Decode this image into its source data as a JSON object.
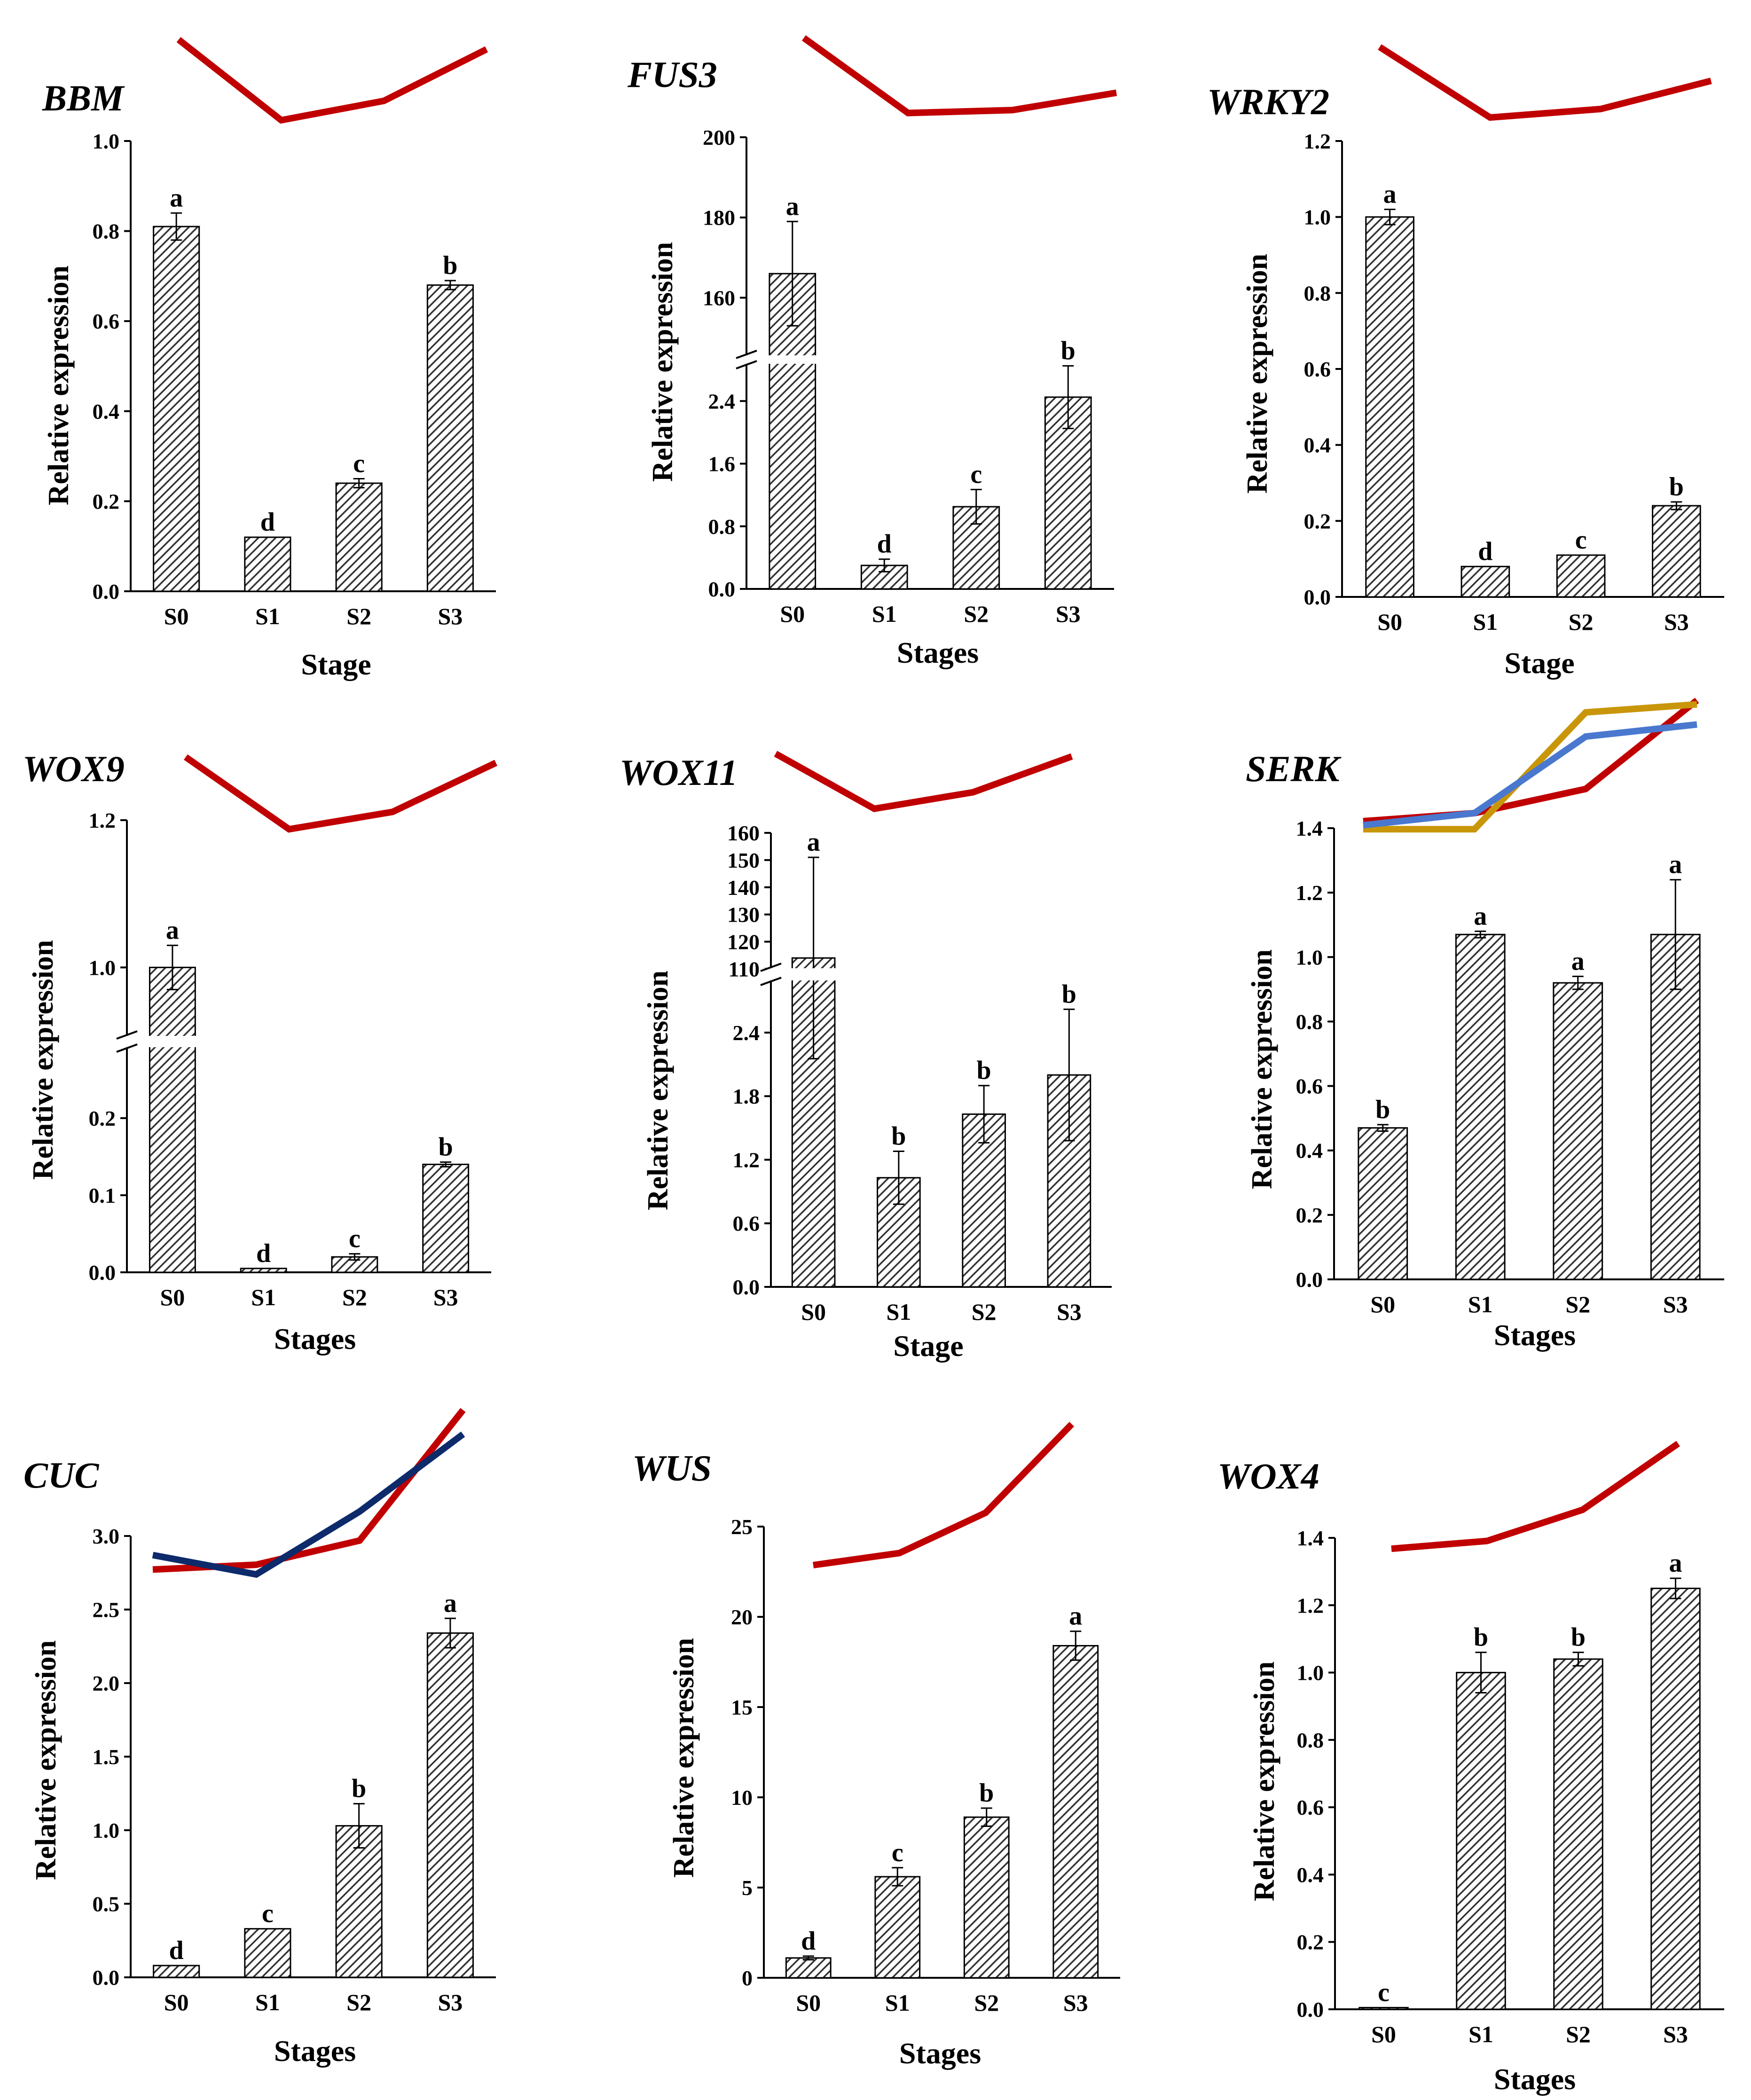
{
  "figure": {
    "description_free": true
  },
  "colors": {
    "trend_red": "#c00000",
    "trend_navy": "#0d2a6b",
    "trend_blue": "#4a78cf",
    "trend_gold": "#c9960a",
    "bar_fill": "#6b6b6b",
    "axis": "#000000"
  },
  "chart_data": [
    {
      "type": "bar",
      "title": "BBM",
      "ylabel": "Relative expression",
      "xlabel": "Stage",
      "categories": [
        "S0",
        "S1",
        "S2",
        "S3"
      ],
      "values": [
        0.81,
        0.12,
        0.24,
        0.68
      ],
      "errors": [
        0.03,
        0.0,
        0.01,
        0.01
      ],
      "letters": [
        "a",
        "d",
        "c",
        "b"
      ],
      "ylim": [
        0,
        1.0
      ],
      "yticks": [
        0.0,
        0.2,
        0.4,
        0.6,
        0.8,
        1.0
      ],
      "ytick_labels": [
        "0.0",
        "0.2",
        "0.4",
        "0.6",
        "0.8",
        "1.0"
      ],
      "trend_lines": [
        {
          "color": "#c00000",
          "values": [
            3.5,
            1.0,
            1.6,
            3.2
          ]
        }
      ]
    },
    {
      "type": "bar",
      "title": "FUS3",
      "ylabel": "Relative expression",
      "xlabel": "Stages",
      "categories": [
        "S0",
        "S1",
        "S2",
        "S3"
      ],
      "values": [
        166,
        0.3,
        1.05,
        2.45
      ],
      "errors": [
        13,
        0.08,
        0.22,
        0.4
      ],
      "letters": [
        "a",
        "d",
        "c",
        "b"
      ],
      "broken_axis": {
        "lower": [
          0,
          2.9
        ],
        "upper": [
          144,
          200
        ]
      },
      "yticks": [
        0.0,
        0.8,
        1.6,
        2.4,
        160,
        180,
        200
      ],
      "ytick_labels": [
        "0.0",
        "0.8",
        "1.6",
        "2.4",
        "160",
        "180",
        "200"
      ],
      "trend_lines": [
        {
          "color": "#c00000",
          "values": [
            3.5,
            0.9,
            1.0,
            1.6
          ]
        }
      ]
    },
    {
      "type": "bar",
      "title": "WRKY2",
      "ylabel": "Relative expression",
      "xlabel": "Stage",
      "categories": [
        "S0",
        "S1",
        "S2",
        "S3"
      ],
      "values": [
        1.0,
        0.08,
        0.11,
        0.24
      ],
      "errors": [
        0.02,
        0.0,
        0.0,
        0.01
      ],
      "letters": [
        "a",
        "d",
        "c",
        "b"
      ],
      "ylim": [
        0,
        1.2
      ],
      "yticks": [
        0.0,
        0.2,
        0.4,
        0.6,
        0.8,
        1.0,
        1.2
      ],
      "ytick_labels": [
        "0.0",
        "0.2",
        "0.4",
        "0.6",
        "0.8",
        "1.0",
        "1.2"
      ],
      "trend_lines": [
        {
          "color": "#c00000",
          "values": [
            3.5,
            1.0,
            1.3,
            2.3
          ]
        }
      ]
    },
    {
      "type": "bar",
      "title": "WOX9",
      "ylabel": "Relative expression",
      "xlabel": "Stages",
      "categories": [
        "S0",
        "S1",
        "S2",
        "S3"
      ],
      "values": [
        1.0,
        0.005,
        0.02,
        0.14
      ],
      "errors": [
        0.03,
        0.0,
        0.004,
        0.003
      ],
      "letters": [
        "a",
        "d",
        "c",
        "b"
      ],
      "broken_axis": {
        "lower": [
          0,
          0.3
        ],
        "upper": [
          0.9,
          1.2
        ]
      },
      "yticks": [
        0.0,
        0.1,
        0.2,
        1.0,
        1.2
      ],
      "ytick_labels": [
        "0.0",
        "0.1",
        "0.2",
        "1.0",
        "1.2"
      ],
      "trend_lines": [
        {
          "color": "#c00000",
          "values": [
            3.5,
            1.0,
            1.6,
            3.3
          ]
        }
      ]
    },
    {
      "type": "bar",
      "title": "WOX11",
      "ylabel": "Relative expression",
      "xlabel": "Stage",
      "categories": [
        "S0",
        "S1",
        "S2",
        "S3"
      ],
      "values": [
        114,
        1.03,
        1.63,
        2.0
      ],
      "errors": [
        37,
        0.25,
        0.27,
        0.62
      ],
      "letters": [
        "a",
        "b",
        "b",
        "b"
      ],
      "broken_axis": {
        "lower": [
          0,
          2.95
        ],
        "upper": [
          108,
          160
        ]
      },
      "yticks": [
        0.0,
        0.6,
        1.2,
        1.8,
        2.4,
        110,
        120,
        130,
        140,
        150,
        160
      ],
      "ytick_labels": [
        "0.0",
        "0.6",
        "1.2",
        "1.8",
        "2.4",
        "110",
        "120",
        "130",
        "140",
        "150",
        "160"
      ],
      "trend_lines": [
        {
          "color": "#c00000",
          "values": [
            3.0,
            1.0,
            1.6,
            2.9
          ]
        }
      ]
    },
    {
      "type": "bar",
      "title": "SERK",
      "ylabel": "Relative expression",
      "xlabel": "Stages",
      "categories": [
        "S0",
        "S1",
        "S2",
        "S3"
      ],
      "values": [
        0.47,
        1.07,
        0.92,
        1.07
      ],
      "errors": [
        0.01,
        0.01,
        0.02,
        0.17
      ],
      "letters": [
        "b",
        "a",
        "a",
        "a"
      ],
      "ylim": [
        0,
        1.4
      ],
      "yticks": [
        0.0,
        0.2,
        0.4,
        0.6,
        0.8,
        1.0,
        1.2,
        1.4
      ],
      "ytick_labels": [
        "0.0",
        "0.2",
        "0.4",
        "0.6",
        "0.8",
        "1.0",
        "1.2",
        "1.4"
      ],
      "trend_lines": [
        {
          "color": "#c00000",
          "values": [
            1.0,
            1.2,
            1.8,
            4.0
          ]
        },
        {
          "color": "#c9960a",
          "values": [
            0.8,
            0.8,
            3.7,
            3.9
          ]
        },
        {
          "color": "#4a78cf",
          "values": [
            0.9,
            1.2,
            3.1,
            3.4
          ]
        }
      ]
    },
    {
      "type": "bar",
      "title": "CUC",
      "ylabel": "Relative expression",
      "xlabel": "Stages",
      "categories": [
        "S0",
        "S1",
        "S2",
        "S3"
      ],
      "values": [
        0.08,
        0.33,
        1.03,
        2.34
      ],
      "errors": [
        0.0,
        0.0,
        0.15,
        0.1
      ],
      "letters": [
        "d",
        "c",
        "b",
        "a"
      ],
      "ylim": [
        0,
        3.0
      ],
      "yticks": [
        0.0,
        0.5,
        1.0,
        1.5,
        2.0,
        2.5,
        3.0
      ],
      "ytick_labels": [
        "0.0",
        "0.5",
        "1.0",
        "1.5",
        "2.0",
        "2.5",
        "3.0"
      ],
      "trend_lines": [
        {
          "color": "#c00000",
          "values": [
            0.7,
            0.8,
            1.3,
            4.0
          ]
        },
        {
          "color": "#0d2a6b",
          "values": [
            1.0,
            0.6,
            1.9,
            3.5
          ]
        }
      ]
    },
    {
      "type": "bar",
      "title": "WUS",
      "ylabel": "Relative expression",
      "xlabel": "Stages",
      "categories": [
        "S0",
        "S1",
        "S2",
        "S3"
      ],
      "values": [
        1.1,
        5.6,
        8.9,
        18.4
      ],
      "errors": [
        0.1,
        0.5,
        0.5,
        0.8
      ],
      "letters": [
        "d",
        "c",
        "b",
        "a"
      ],
      "ylim": [
        0,
        25
      ],
      "yticks": [
        0,
        5,
        10,
        15,
        20,
        25
      ],
      "ytick_labels": [
        "0",
        "5",
        "10",
        "15",
        "20",
        "25"
      ],
      "trend_lines": [
        {
          "color": "#c00000",
          "values": [
            0.5,
            0.8,
            1.8,
            4.0
          ]
        }
      ]
    },
    {
      "type": "bar",
      "title": "WOX4",
      "ylabel": "Relative expression",
      "xlabel": "Stages",
      "categories": [
        "S0",
        "S1",
        "S2",
        "S3"
      ],
      "values": [
        0.005,
        1.0,
        1.04,
        1.25
      ],
      "errors": [
        0.0,
        0.06,
        0.02,
        0.03
      ],
      "letters": [
        "c",
        "b",
        "b",
        "a"
      ],
      "ylim": [
        0,
        1.4
      ],
      "yticks": [
        0.0,
        0.2,
        0.4,
        0.6,
        0.8,
        1.0,
        1.2,
        1.4
      ],
      "ytick_labels": [
        "0.0",
        "0.2",
        "0.4",
        "0.6",
        "0.8",
        "1.0",
        "1.2",
        "1.4"
      ],
      "trend_lines": [
        {
          "color": "#c00000",
          "values": [
            0.8,
            1.0,
            1.8,
            3.5
          ]
        }
      ]
    }
  ]
}
